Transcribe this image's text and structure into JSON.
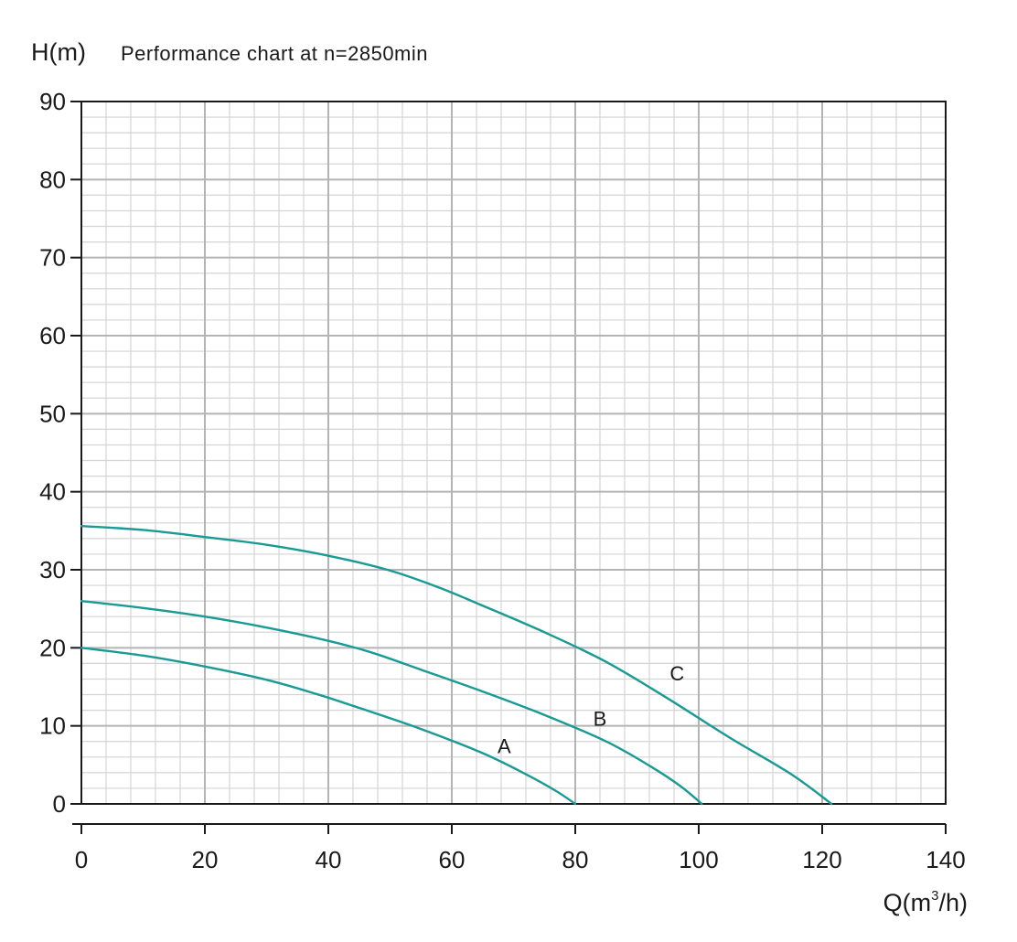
{
  "chart_data": {
    "type": "line",
    "title": "Performance chart at n=2850min",
    "ylabel": "H(m)",
    "xlabel_main": "Q(m",
    "xlabel_sup": "3",
    "xlabel_end": "/h)",
    "xlim": [
      0,
      140
    ],
    "ylim": [
      0,
      90
    ],
    "x_ticks": [
      0,
      20,
      40,
      60,
      80,
      100,
      120,
      140
    ],
    "y_ticks": [
      0,
      10,
      20,
      30,
      40,
      50,
      60,
      70,
      80,
      90
    ],
    "grid": true,
    "line_color": "#1a9a94",
    "series": [
      {
        "name": "A",
        "label_pos": [
          68.5,
          6.5
        ],
        "x": [
          0,
          10,
          20,
          30,
          38,
          45,
          55,
          65,
          72,
          77,
          80
        ],
        "y": [
          20.0,
          19.0,
          17.6,
          15.9,
          14.1,
          12.3,
          9.6,
          6.5,
          3.8,
          1.6,
          0.0
        ]
      },
      {
        "name": "B",
        "label_pos": [
          84,
          10.0
        ],
        "x": [
          0,
          10,
          20,
          30,
          40,
          47,
          55,
          65,
          75,
          85,
          92,
          97,
          100.5
        ],
        "y": [
          26.0,
          25.1,
          24.0,
          22.6,
          20.9,
          19.4,
          17.2,
          14.4,
          11.4,
          8.0,
          4.9,
          2.3,
          0.0
        ]
      },
      {
        "name": "C",
        "label_pos": [
          96.5,
          15.8
        ],
        "x": [
          0,
          10,
          20,
          30,
          40,
          50,
          58,
          65,
          75,
          85,
          95,
          105,
          115,
          121.5
        ],
        "y": [
          35.6,
          35.1,
          34.2,
          33.2,
          31.8,
          29.9,
          27.7,
          25.4,
          22.0,
          18.2,
          13.5,
          8.5,
          3.8,
          0.0
        ]
      }
    ]
  }
}
